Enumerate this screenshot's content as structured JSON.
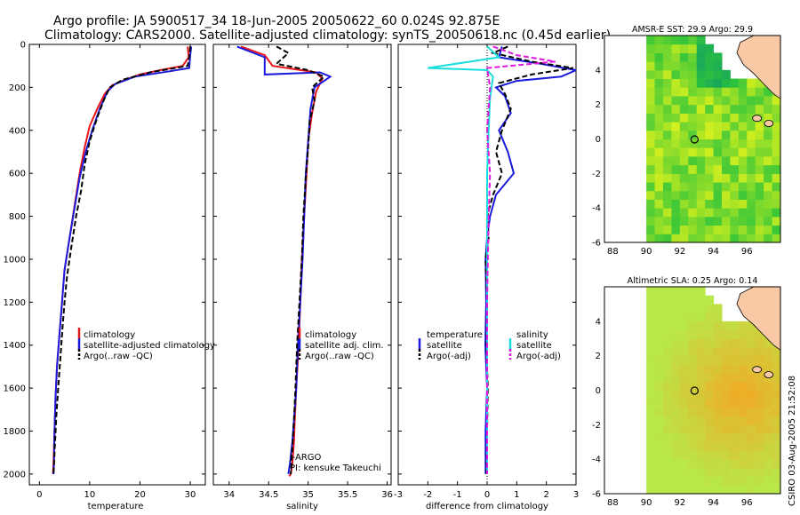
{
  "header": {
    "line1": "Argo profile: JA 5900517_34 18-Jun-2005 20050622_60 0.024S 92.875E",
    "line2": "Climatology: CARS2000. Satellite-adjusted climatology: synTS_20050618.nc (0.45d earlier)"
  },
  "side_stamp": "CSIRO 03-Aug-2005 21:52:08",
  "colors": {
    "climatology": "#e8161b",
    "satellite": "#1a1adc",
    "argo": "#000000",
    "salinity_diff": "#19dede",
    "argo_sal_diff": "#dc19dc"
  },
  "chart_data": [
    {
      "id": "temperature",
      "type": "line",
      "xlabel": "temperature",
      "xlim": [
        -2,
        33
      ],
      "ylim": [
        0,
        2050
      ],
      "xticks": [
        0,
        10,
        20,
        30
      ],
      "yticks": [
        0,
        200,
        400,
        600,
        800,
        1000,
        1200,
        1400,
        1600,
        1800,
        2000
      ],
      "legend": [
        "climatology",
        "satellite-adjusted climatology",
        "Argo(..raw -QC)"
      ],
      "series": [
        {
          "name": "climatology",
          "color": "#e8161b",
          "dash": "",
          "x": [
            29.5,
            29.7,
            28.5,
            24,
            20,
            17,
            14.5,
            13,
            11.5,
            10,
            9,
            8,
            7,
            6,
            5,
            4.5,
            4,
            3.5,
            3.2,
            3.0,
            2.8,
            2.7
          ],
          "y": [
            10,
            60,
            100,
            120,
            140,
            165,
            190,
            230,
            300,
            380,
            480,
            600,
            750,
            900,
            1050,
            1200,
            1350,
            1500,
            1650,
            1800,
            1950,
            2000
          ]
        },
        {
          "name": "satellite",
          "color": "#1a1adc",
          "dash": "",
          "x": [
            30.2,
            30.0,
            29.8,
            26,
            19,
            15,
            13.5,
            12,
            10.5,
            9.2,
            8,
            7,
            6,
            5,
            4.5,
            4,
            3.5,
            3.2,
            3.0,
            2.9,
            2.8
          ],
          "y": [
            10,
            50,
            110,
            125,
            150,
            185,
            220,
            300,
            400,
            500,
            620,
            760,
            900,
            1050,
            1200,
            1350,
            1500,
            1650,
            1800,
            1950,
            2000
          ]
        },
        {
          "name": "Argo",
          "color": "#000000",
          "dash": "6,3",
          "x": [
            30.0,
            29.9,
            29.5,
            22,
            16.5,
            14,
            12.8,
            11.5,
            10,
            9,
            8.3,
            7.3,
            6.3,
            5.5,
            5,
            4.6,
            4.2,
            3.8,
            3.4,
            3.1,
            2.9,
            2.8
          ],
          "y": [
            10,
            40,
            100,
            130,
            165,
            200,
            260,
            340,
            450,
            560,
            680,
            800,
            950,
            1080,
            1200,
            1320,
            1450,
            1580,
            1720,
            1850,
            1960,
            2000
          ]
        }
      ]
    },
    {
      "id": "salinity",
      "type": "line",
      "xlabel": "salinity",
      "xlim": [
        33.8,
        36.05
      ],
      "ylim": [
        0,
        2050
      ],
      "xticks": [
        34,
        34.5,
        35,
        35.5,
        36
      ],
      "xtick_labels": [
        "34",
        "34.5",
        "35",
        "35.5",
        "36"
      ],
      "legend": [
        "climatology",
        "satellite adj. clim.",
        "Argo(..raw -QC)"
      ],
      "annotation": [
        "J-ARGO",
        "PI: kensuke Takeuchi"
      ],
      "series": [
        {
          "name": "climatology",
          "color": "#e8161b",
          "dash": "",
          "x": [
            34.15,
            34.45,
            34.55,
            35.1,
            35.18,
            35.1,
            35.05,
            35.0,
            34.98,
            34.95,
            34.92,
            34.9,
            34.88,
            34.85,
            34.83,
            34.82,
            34.8,
            34.78,
            34.76
          ],
          "y": [
            10,
            50,
            100,
            130,
            160,
            220,
            320,
            450,
            600,
            800,
            1000,
            1200,
            1400,
            1600,
            1750,
            1850,
            1950,
            2000,
            2010
          ]
        },
        {
          "name": "satellite",
          "color": "#1a1adc",
          "dash": "",
          "x": [
            34.1,
            34.45,
            34.45,
            35.15,
            35.28,
            35.08,
            35.03,
            35.0,
            34.97,
            34.95,
            34.93,
            34.9,
            34.87,
            34.85,
            34.82,
            34.8,
            34.77,
            34.75
          ],
          "y": [
            10,
            60,
            140,
            130,
            150,
            200,
            300,
            450,
            600,
            800,
            1000,
            1200,
            1400,
            1600,
            1750,
            1850,
            1950,
            2000
          ]
        },
        {
          "name": "Argo",
          "color": "#000000",
          "dash": "6,3",
          "x": [
            34.6,
            34.75,
            34.6,
            35.0,
            35.2,
            35.05,
            35.08,
            35.02,
            35.0,
            34.97,
            34.94,
            34.92,
            34.89,
            34.86,
            34.84,
            34.82,
            34.8,
            34.78
          ],
          "y": [
            10,
            40,
            90,
            120,
            150,
            200,
            260,
            360,
            480,
            620,
            800,
            1000,
            1200,
            1400,
            1600,
            1750,
            1880,
            2000
          ]
        }
      ]
    },
    {
      "id": "difference",
      "type": "line",
      "xlabel": "difference from climatology",
      "xlim": [
        -3,
        3
      ],
      "ylim": [
        0,
        2050
      ],
      "xticks": [
        -3,
        -2,
        -1,
        0,
        1,
        2,
        3
      ],
      "legend_left": [
        "temperature",
        "satellite",
        "Argo(-adj)"
      ],
      "legend_right": [
        "salinity",
        "satellite",
        "Argo(-adj)"
      ],
      "series": [
        {
          "name": "temp satellite",
          "color": "#1a1adc",
          "dash": "",
          "x": [
            0.5,
            0.4,
            1.8,
            3.0,
            2.5,
            1.0,
            0.3,
            0.6,
            0.8,
            0.4,
            0.7,
            0.9,
            0.3,
            0.1,
            0.0,
            -0.05,
            -0.03,
            -0.06,
            0.0,
            -0.05,
            -0.05
          ],
          "y": [
            10,
            60,
            90,
            120,
            150,
            170,
            200,
            240,
            320,
            400,
            500,
            600,
            700,
            800,
            900,
            1000,
            1200,
            1400,
            1600,
            1800,
            2000
          ]
        },
        {
          "name": "temp Argo",
          "color": "#000000",
          "dash": "6,3",
          "x": [
            0.7,
            0.2,
            1.5,
            2.9,
            1.5,
            0.4,
            0.6,
            0.8,
            0.5,
            0.3,
            0.5,
            0.2,
            0.0,
            0.05,
            -0.05,
            0.0,
            -0.02,
            0.02,
            0.0,
            -0.02
          ],
          "y": [
            10,
            40,
            80,
            110,
            140,
            180,
            230,
            300,
            400,
            500,
            600,
            700,
            800,
            900,
            1000,
            1200,
            1400,
            1600,
            1800,
            2000
          ]
        },
        {
          "name": "sal satellite",
          "color": "#19dede",
          "dash": "",
          "x": [
            0.0,
            0.4,
            -2.0,
            0.0,
            0.2,
            0.1,
            0.05,
            0.0,
            0.0,
            0.0,
            0.0,
            0.0
          ],
          "y": [
            10,
            60,
            110,
            120,
            150,
            250,
            400,
            600,
            900,
            1300,
            1700,
            2000
          ]
        },
        {
          "name": "sal Argo",
          "color": "#dc19dc",
          "dash": "6,3",
          "x": [
            0.2,
            1.0,
            2.3,
            0.0,
            0.1,
            0.0,
            0.1,
            0.05,
            0.0,
            0.0
          ],
          "y": [
            10,
            50,
            80,
            110,
            200,
            400,
            600,
            800,
            1200,
            2000
          ]
        }
      ]
    },
    {
      "id": "sst_map",
      "type": "heatmap",
      "title": "AMSR-E SST: 29.9 Argo: 29.9",
      "xlim": [
        87.5,
        98
      ],
      "ylim": [
        -6,
        6
      ],
      "xticks": [
        88,
        90,
        92,
        94,
        96
      ],
      "yticks": [
        -6,
        -4,
        -2,
        0,
        2,
        4
      ],
      "argo_marker": {
        "lon": 92.875,
        "lat": -0.024
      }
    },
    {
      "id": "sla_map",
      "type": "heatmap",
      "title": "Altimetric SLA: 0.25 Argo: 0.14",
      "xlim": [
        87.5,
        98
      ],
      "ylim": [
        -6,
        6
      ],
      "xticks": [
        88,
        90,
        92,
        94,
        96
      ],
      "yticks": [
        -6,
        -4,
        -2,
        0,
        2,
        4
      ],
      "argo_marker": {
        "lon": 92.875,
        "lat": -0.024
      }
    }
  ]
}
